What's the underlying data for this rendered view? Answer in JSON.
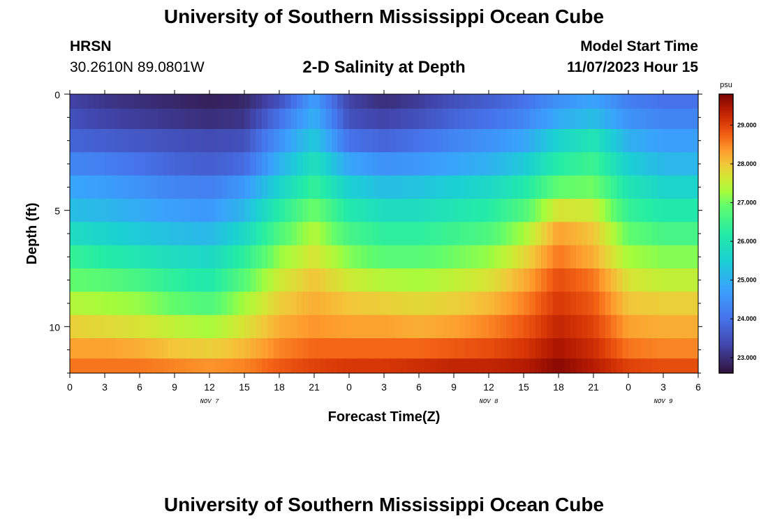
{
  "header": {
    "title": "University of Southern Mississippi Ocean Cube",
    "station": "HRSN",
    "coords": "30.2610N  89.0801W",
    "subtitle": "2-D Salinity at Depth",
    "model_start_label": "Model Start Time",
    "model_start_time": "11/07/2023 Hour 15"
  },
  "footer": {
    "title": "University of Southern Mississippi Ocean Cube"
  },
  "colormap": {
    "stops": [
      {
        "v": 0.0,
        "c": "#30123b"
      },
      {
        "v": 0.1,
        "c": "#4145ab"
      },
      {
        "v": 0.2,
        "c": "#4675ed"
      },
      {
        "v": 0.3,
        "c": "#39a2fc"
      },
      {
        "v": 0.4,
        "c": "#1bcfd4"
      },
      {
        "v": 0.5,
        "c": "#24eca6"
      },
      {
        "v": 0.6,
        "c": "#61fc6c"
      },
      {
        "v": 0.65,
        "c": "#a4fc3b"
      },
      {
        "v": 0.7,
        "c": "#d1e834"
      },
      {
        "v": 0.75,
        "c": "#f3c63a"
      },
      {
        "v": 0.8,
        "c": "#fe9b2d"
      },
      {
        "v": 0.85,
        "c": "#f36315"
      },
      {
        "v": 0.9,
        "c": "#d93806"
      },
      {
        "v": 0.95,
        "c": "#b11901"
      },
      {
        "v": 1.0,
        "c": "#7a0403"
      }
    ]
  },
  "chart_data": {
    "type": "heatmap",
    "title": "2-D Salinity at Depth",
    "xlabel": "Forecast Time(Z)",
    "ylabel": "Depth (ft)",
    "colorbar_unit": "psu",
    "x_range_hours": [
      0,
      54
    ],
    "x_tick_labels": [
      "0",
      "3",
      "6",
      "9",
      "12",
      "15",
      "18",
      "21",
      "0",
      "3",
      "6",
      "9",
      "12",
      "15",
      "18",
      "21",
      "0",
      "3",
      "6"
    ],
    "date_labels": [
      {
        "label": "NOV 7",
        "hour": 12
      },
      {
        "label": "NOV 8",
        "hour": 36
      },
      {
        "label": "NOV 9",
        "hour": 51
      }
    ],
    "y_range_ft": [
      0,
      12
    ],
    "y_tick_labels": [
      "0",
      "5",
      "10"
    ],
    "depth_levels_ft": [
      0.25,
      1.0,
      2.0,
      3.0,
      4.0,
      5.0,
      6.0,
      7.0,
      8.0,
      9.0,
      10.0,
      11.0,
      11.75
    ],
    "colorbar_range": [
      22.6,
      29.8
    ],
    "colorbar_ticks": [
      "23.000",
      "24.000",
      "25.000",
      "26.000",
      "27.000",
      "28.000",
      "29.000"
    ],
    "time_hours": [
      0,
      3,
      6,
      9,
      12,
      15,
      18,
      21,
      24,
      27,
      30,
      33,
      36,
      39,
      42,
      45,
      48,
      51,
      54
    ],
    "salinity_psu": [
      [
        23.3,
        23.1,
        23.0,
        22.9,
        22.8,
        22.9,
        23.5,
        24.7,
        23.3,
        23.0,
        23.2,
        23.5,
        23.7,
        24.0,
        24.5,
        24.8,
        24.2,
        24.0,
        24.0
      ],
      [
        23.5,
        23.3,
        23.2,
        23.1,
        23.0,
        23.1,
        24.0,
        25.0,
        23.5,
        23.3,
        23.5,
        23.8,
        24.0,
        24.3,
        24.9,
        25.2,
        24.5,
        24.3,
        24.3
      ],
      [
        23.8,
        23.7,
        23.6,
        23.5,
        23.4,
        23.5,
        24.5,
        25.4,
        24.0,
        23.8,
        24.0,
        24.3,
        24.5,
        24.8,
        25.6,
        26.0,
        25.0,
        24.7,
        24.7
      ],
      [
        24.3,
        24.2,
        24.0,
        23.8,
        23.7,
        23.9,
        25.0,
        25.9,
        24.8,
        24.5,
        24.6,
        24.8,
        25.0,
        25.4,
        26.2,
        26.5,
        25.5,
        25.1,
        25.1
      ],
      [
        24.8,
        24.7,
        24.5,
        24.3,
        24.2,
        24.6,
        25.6,
        26.4,
        25.5,
        25.2,
        25.3,
        25.5,
        25.7,
        26.1,
        26.9,
        27.0,
        26.0,
        25.6,
        25.6
      ],
      [
        25.2,
        25.1,
        24.9,
        24.7,
        24.6,
        25.1,
        26.2,
        27.0,
        26.1,
        25.8,
        25.8,
        26.0,
        26.2,
        26.7,
        27.7,
        27.6,
        26.4,
        26.1,
        26.1
      ],
      [
        25.8,
        25.6,
        25.4,
        25.2,
        25.1,
        25.7,
        26.7,
        27.4,
        26.6,
        26.3,
        26.3,
        26.5,
        26.7,
        27.3,
        28.3,
        28.0,
        26.9,
        26.6,
        26.6
      ],
      [
        26.4,
        26.2,
        26.0,
        25.8,
        25.7,
        26.3,
        27.2,
        27.7,
        27.1,
        26.8,
        26.8,
        27.0,
        27.2,
        27.8,
        28.6,
        28.2,
        27.3,
        27.1,
        27.1
      ],
      [
        26.9,
        26.8,
        26.6,
        26.3,
        26.1,
        26.8,
        27.6,
        28.0,
        27.6,
        27.4,
        27.3,
        27.5,
        27.7,
        28.2,
        28.9,
        28.6,
        27.7,
        27.5,
        27.5
      ],
      [
        27.4,
        27.3,
        27.2,
        26.9,
        26.7,
        27.3,
        27.9,
        28.2,
        28.0,
        27.9,
        27.8,
        27.9,
        28.1,
        28.5,
        29.1,
        28.8,
        28.0,
        27.9,
        27.9
      ],
      [
        27.9,
        27.8,
        27.7,
        27.5,
        27.3,
        27.7,
        28.2,
        28.4,
        28.3,
        28.3,
        28.2,
        28.3,
        28.5,
        28.8,
        29.3,
        29.0,
        28.3,
        28.2,
        28.2
      ],
      [
        28.3,
        28.3,
        28.2,
        28.0,
        27.9,
        28.1,
        28.5,
        28.7,
        28.7,
        28.7,
        28.7,
        28.8,
        28.9,
        29.1,
        29.5,
        29.2,
        28.6,
        28.5,
        28.5
      ],
      [
        28.6,
        28.6,
        28.6,
        28.5,
        28.4,
        28.5,
        28.8,
        29.0,
        29.1,
        29.1,
        29.2,
        29.3,
        29.3,
        29.4,
        29.7,
        29.4,
        29.0,
        28.9,
        28.9
      ]
    ]
  }
}
